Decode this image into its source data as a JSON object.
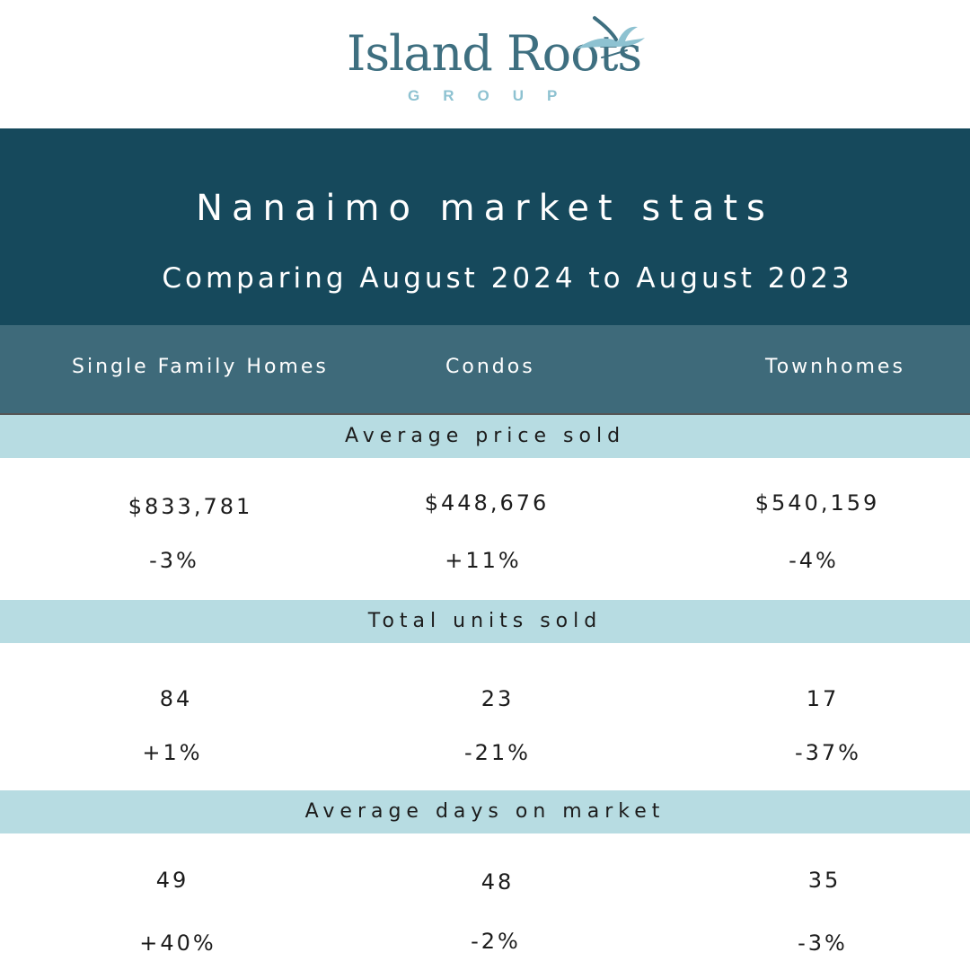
{
  "brand": {
    "name": "Island Roots",
    "sub": "GROUP",
    "colors": {
      "logo": "#3e6f80",
      "logo_light": "#8ec2d1"
    }
  },
  "hero": {
    "title": "Nanaimo market stats",
    "subtitle": "Comparing August 2024 to August 2023",
    "background": "#16495c"
  },
  "columns": [
    "Single Family Homes",
    "Condos",
    "Townhomes"
  ],
  "sections": [
    {
      "title": "Average price sold",
      "values": [
        "$833,781",
        "$448,676",
        "$540,159"
      ],
      "changes": [
        "-3%",
        "+11%",
        "-4%"
      ]
    },
    {
      "title": "Total units sold",
      "values": [
        "84",
        "23",
        "17"
      ],
      "changes": [
        "+1%",
        "-21%",
        "-37%"
      ]
    },
    {
      "title": "Average days on market",
      "values": [
        "49",
        "48",
        "35"
      ],
      "changes": [
        "+40%",
        "-2%",
        "-3%"
      ]
    }
  ],
  "colors": {
    "header_bar": "#3e6a7a",
    "section_band": "#b7dce2"
  }
}
